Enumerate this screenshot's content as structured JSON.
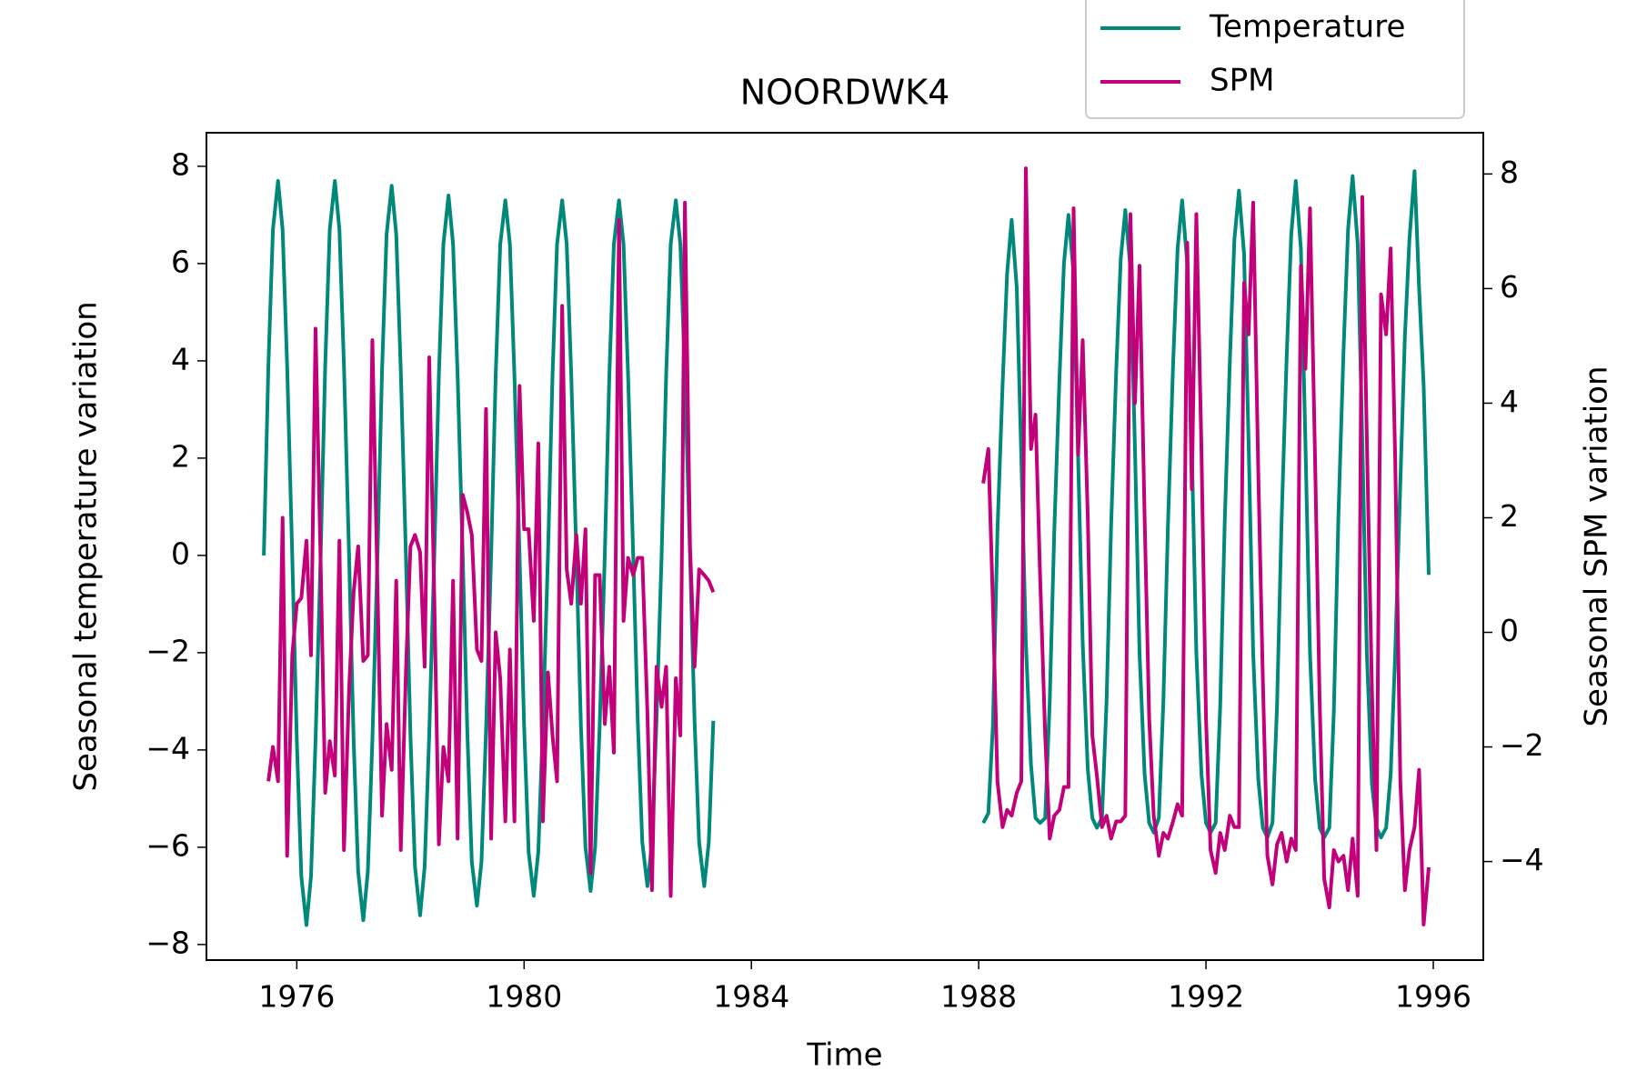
{
  "chart_data": {
    "type": "line",
    "title": "NOORDWK4",
    "xlabel": "Time",
    "ylabel": "Seasonal temperature variation",
    "y2label": "Seasonal SPM variation",
    "legend": "upper right",
    "xlim": [
      1974.41,
      1996.88
    ],
    "xticks": [
      1976,
      1980,
      1984,
      1988,
      1992,
      1996
    ],
    "ylim": [
      -8.32,
      8.69
    ],
    "yticks": [
      {
        "value": -8,
        "label": "−8"
      },
      {
        "value": -6,
        "label": "−6"
      },
      {
        "value": -4,
        "label": "−4"
      },
      {
        "value": -2,
        "label": "−2"
      },
      0,
      2,
      4,
      6,
      8
    ],
    "y2lim": [
      -5.72,
      8.72
    ],
    "y2ticks": [
      {
        "value": -4,
        "label": "−4"
      },
      {
        "value": -2,
        "label": "−2"
      },
      0,
      2,
      4,
      6,
      8
    ],
    "x": [
      1975.42,
      1975.5,
      1975.58,
      1975.67,
      1975.75,
      1975.83,
      1975.92,
      1976,
      1976.08,
      1976.17,
      1976.25,
      1976.33,
      1976.42,
      1976.5,
      1976.58,
      1976.67,
      1976.75,
      1976.83,
      1976.92,
      1977,
      1977.08,
      1977.17,
      1977.25,
      1977.33,
      1977.42,
      1977.5,
      1977.58,
      1977.67,
      1977.75,
      1977.83,
      1977.92,
      1978,
      1978.08,
      1978.17,
      1978.25,
      1978.33,
      1978.42,
      1978.5,
      1978.58,
      1978.67,
      1978.75,
      1978.83,
      1978.92,
      1979,
      1979.08,
      1979.17,
      1979.25,
      1979.33,
      1979.42,
      1979.5,
      1979.58,
      1979.67,
      1979.75,
      1979.83,
      1979.92,
      1980,
      1980.08,
      1980.17,
      1980.25,
      1980.33,
      1980.42,
      1980.5,
      1980.58,
      1980.67,
      1980.75,
      1980.83,
      1980.92,
      1981,
      1981.08,
      1981.17,
      1981.25,
      1981.33,
      1981.42,
      1981.5,
      1981.58,
      1981.67,
      1981.75,
      1981.83,
      1981.92,
      1982,
      1982.08,
      1982.17,
      1982.25,
      1982.33,
      1982.42,
      1982.5,
      1982.58,
      1982.67,
      1982.75,
      1982.83,
      1982.92,
      1983,
      1983.08,
      1983.17,
      1983.25,
      1983.33,
      1983.42,
      1988.08,
      1988.17,
      1988.25,
      1988.33,
      1988.42,
      1988.5,
      1988.58,
      1988.67,
      1988.75,
      1988.83,
      1988.92,
      1989,
      1989.08,
      1989.17,
      1989.25,
      1989.33,
      1989.42,
      1989.5,
      1989.58,
      1989.67,
      1989.75,
      1989.83,
      1989.92,
      1990,
      1990.08,
      1990.17,
      1990.25,
      1990.33,
      1990.42,
      1990.5,
      1990.58,
      1990.67,
      1990.75,
      1990.83,
      1990.92,
      1991,
      1991.08,
      1991.17,
      1991.25,
      1991.33,
      1991.42,
      1991.5,
      1991.58,
      1991.67,
      1991.75,
      1991.83,
      1991.92,
      1992,
      1992.08,
      1992.17,
      1992.25,
      1992.33,
      1992.42,
      1992.5,
      1992.58,
      1992.67,
      1992.75,
      1992.83,
      1992.92,
      1993,
      1993.08,
      1993.17,
      1993.25,
      1993.33,
      1993.42,
      1993.5,
      1993.58,
      1993.67,
      1993.75,
      1993.83,
      1993.92,
      1994,
      1994.08,
      1994.17,
      1994.25,
      1994.33,
      1994.42,
      1994.5,
      1994.58,
      1994.67,
      1994.75,
      1994.83,
      1994.92,
      1995,
      1995.08,
      1995.17,
      1995.25,
      1995.33,
      1995.42,
      1995.5,
      1995.58,
      1995.67,
      1995.75,
      1995.83,
      1995.92
    ],
    "series": [
      {
        "name": "Temperature",
        "color": "#00897b",
        "axis": "y",
        "values": [
          0,
          3.9,
          6.7,
          7.7,
          6.7,
          3.9,
          0,
          -3.8,
          -6.6,
          -7.6,
          -6.6,
          -3.8,
          0,
          3.9,
          6.7,
          7.7,
          6.7,
          3.9,
          0,
          -3.8,
          -6.5,
          -7.5,
          -6.5,
          -3.8,
          0,
          3.8,
          6.6,
          7.6,
          6.6,
          3.8,
          0,
          -3.7,
          -6.4,
          -7.4,
          -6.4,
          -3.7,
          0,
          3.7,
          6.4,
          7.4,
          6.4,
          3.7,
          0,
          -3.6,
          -6.3,
          -7.2,
          -6.3,
          -3.6,
          0,
          3.7,
          6.4,
          7.3,
          6.4,
          3.7,
          0,
          -3.5,
          -6.1,
          -7.0,
          -6.1,
          -3.5,
          0,
          3.7,
          6.4,
          7.3,
          6.4,
          3.7,
          0,
          -3.5,
          -6.0,
          -6.9,
          -6.0,
          -3.5,
          0,
          3.7,
          6.4,
          7.3,
          6.4,
          3.7,
          0,
          -3.4,
          -5.9,
          -6.8,
          -5.9,
          -3.4,
          0,
          3.7,
          6.4,
          7.3,
          6.4,
          3.7,
          0,
          -3.4,
          -5.9,
          -6.8,
          -5.9,
          -3.4,
          null,
          -5.5,
          -5.3,
          -3.5,
          0.5,
          3.5,
          5.8,
          6.9,
          5.5,
          2.0,
          -1.8,
          -4.3,
          -5.4,
          -5.5,
          -5.4,
          -3.0,
          0.5,
          3.6,
          6.0,
          7.0,
          5.8,
          2.0,
          -1.8,
          -4.4,
          -5.4,
          -5.6,
          -5.4,
          -3.0,
          0.6,
          3.8,
          6.1,
          7.1,
          5.9,
          2.2,
          -2.0,
          -4.5,
          -5.5,
          -5.7,
          -5.4,
          -3.0,
          0.6,
          3.9,
          6.3,
          7.3,
          6.0,
          2.2,
          -2.0,
          -4.5,
          -5.5,
          -5.7,
          -5.5,
          -3.1,
          0.7,
          4.0,
          6.5,
          7.5,
          6.2,
          2.3,
          -2.0,
          -4.6,
          -5.6,
          -5.8,
          -5.5,
          -3.1,
          0.7,
          4.1,
          6.6,
          7.7,
          6.3,
          2.3,
          -2.0,
          -4.6,
          -5.6,
          -5.8,
          -5.6,
          -3.2,
          0.8,
          4.2,
          6.7,
          7.8,
          6.4,
          2.4,
          -2.0,
          -4.7,
          -5.6,
          -5.8,
          -5.6,
          -4.5,
          -2.0,
          1.5,
          4.5,
          6.5,
          7.9,
          5.5,
          3.5,
          -0.4
        ]
      },
      {
        "name": "SPM",
        "color": "#c2007a",
        "axis": "y2",
        "values": [
          null,
          -2.6,
          -2.0,
          -2.6,
          2.0,
          -3.9,
          -0.4,
          0.5,
          0.6,
          1.6,
          -0.4,
          5.3,
          1.2,
          -2.8,
          -1.9,
          -2.5,
          1.6,
          -3.8,
          -1.0,
          0.7,
          1.5,
          -0.5,
          -0.4,
          5.1,
          0.8,
          -3.2,
          -1.6,
          -2.4,
          0.9,
          -3.8,
          -0.7,
          1.5,
          1.7,
          1.4,
          -0.6,
          4.8,
          0.6,
          -3.7,
          -2.0,
          -2.6,
          0.9,
          -3.6,
          2.4,
          2.1,
          1.7,
          -0.3,
          -0.5,
          3.9,
          -3.6,
          0.0,
          -0.8,
          -3.3,
          -0.3,
          -3.3,
          4.3,
          1.8,
          1.8,
          0.2,
          3.3,
          -3.3,
          -0.7,
          -1.8,
          -2.6,
          5.7,
          1.1,
          0.5,
          1.7,
          0.5,
          1.8,
          -4.2,
          1.0,
          1.0,
          -1.6,
          -0.6,
          -2.1,
          7.2,
          0.2,
          1.3,
          1.0,
          1.3,
          1.3,
          -1.4,
          -4.5,
          -0.6,
          -1.3,
          -0.6,
          -4.6,
          -0.8,
          -1.8,
          7.5,
          1.5,
          -0.6,
          1.1,
          1.0,
          0.9,
          0.7,
          null,
          2.6,
          3.2,
          0.5,
          -2.6,
          -3.4,
          -3.1,
          -3.2,
          -2.8,
          -2.6,
          8.1,
          3.2,
          3.8,
          1.0,
          -1.8,
          -3.6,
          -3.2,
          -3.1,
          -2.7,
          -2.7,
          7.4,
          3.1,
          5.1,
          2.0,
          -1.8,
          -2.5,
          -3.4,
          -3.2,
          -3.6,
          -3.3,
          -3.3,
          -3.2,
          7.3,
          4.0,
          6.4,
          2.0,
          -1.5,
          -3.2,
          -3.9,
          -3.5,
          -3.6,
          -3.3,
          -3.0,
          -3.2,
          6.8,
          2.5,
          7.3,
          3.2,
          -1.5,
          -3.8,
          -4.2,
          -3.5,
          -3.8,
          -3.2,
          -3.4,
          -3.4,
          6.1,
          5.2,
          7.5,
          2.8,
          -0.8,
          -3.9,
          -4.4,
          -3.7,
          -3.5,
          -4.0,
          -3.6,
          -3.8,
          6.4,
          4.6,
          7.4,
          3.0,
          -1.2,
          -4.3,
          -4.8,
          -3.8,
          -4.0,
          -3.9,
          -4.5,
          -3.6,
          -4.6,
          7.6,
          3.4,
          -1.0,
          -3.8,
          5.9,
          5.2,
          6.7,
          3.0,
          -2.6,
          -4.5,
          -3.8,
          -3.4,
          -2.4,
          -5.1,
          -4.1
        ]
      }
    ]
  }
}
